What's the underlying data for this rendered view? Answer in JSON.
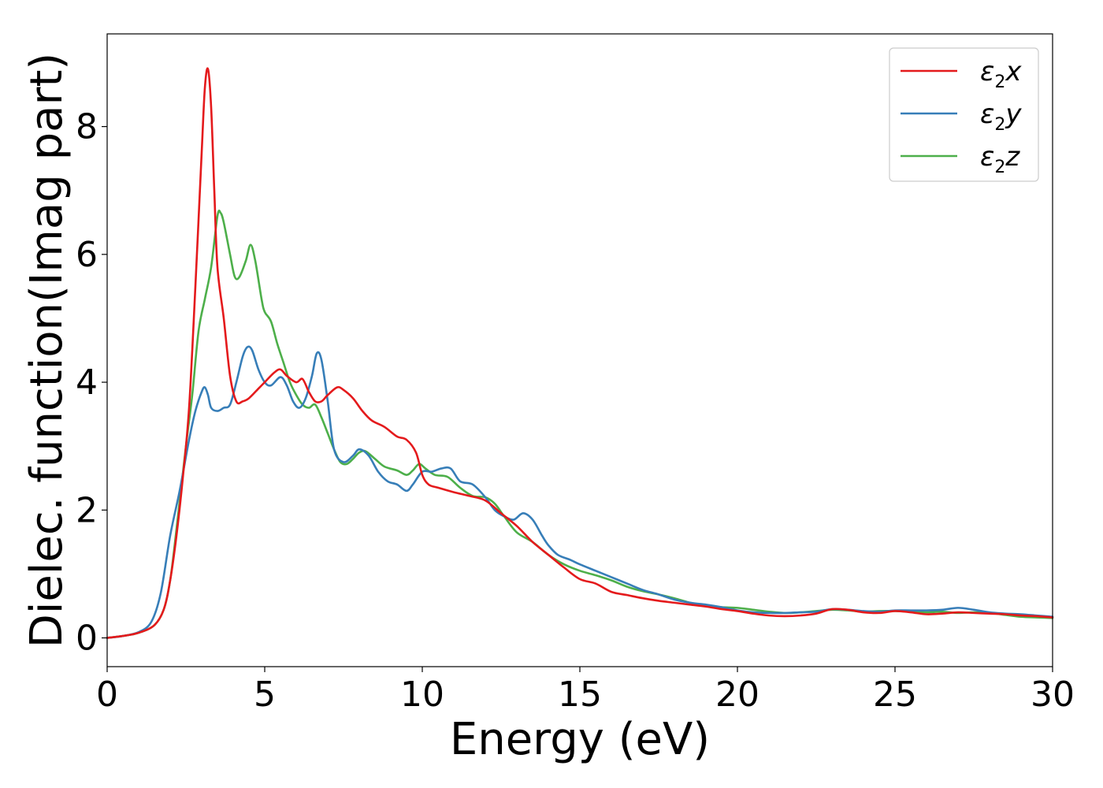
{
  "chart_data": {
    "type": "line",
    "xlabel": "Energy (eV)",
    "ylabel": "Dielec. function(Imag part)",
    "xlim": [
      0,
      30
    ],
    "ylim": [
      -0.45,
      9.45
    ],
    "xticks": [
      0,
      5,
      10,
      15,
      20,
      25,
      30
    ],
    "yticks": [
      0,
      2,
      4,
      6,
      8
    ],
    "grid": false,
    "legend_position": "top-right",
    "series": [
      {
        "name": "ε2x",
        "legend": {
          "base": "ε",
          "sub": "2",
          "suffix": "x"
        },
        "color": "#e41a1c",
        "x": [
          0,
          0.5,
          1.0,
          1.5,
          1.8,
          2.0,
          2.2,
          2.4,
          2.6,
          2.8,
          3.0,
          3.1,
          3.2,
          3.3,
          3.4,
          3.5,
          3.7,
          3.9,
          4.1,
          4.3,
          4.5,
          4.8,
          5.0,
          5.3,
          5.5,
          5.7,
          6.0,
          6.2,
          6.4,
          6.6,
          6.8,
          7.0,
          7.3,
          7.5,
          7.8,
          8.1,
          8.4,
          8.8,
          9.2,
          9.5,
          9.8,
          10.0,
          10.2,
          10.5,
          11.0,
          11.5,
          12.0,
          12.5,
          13.0,
          13.5,
          14.0,
          14.5,
          15.0,
          15.5,
          16.0,
          16.5,
          17.0,
          17.5,
          18.0,
          18.5,
          19.0,
          19.5,
          20.0,
          20.5,
          21.0,
          21.5,
          22.0,
          22.5,
          23.0,
          23.5,
          24.0,
          24.5,
          25.0,
          25.5,
          26.0,
          26.5,
          27.0,
          27.5,
          28.0,
          28.5,
          29.0,
          29.5,
          30.0
        ],
        "y": [
          0,
          0.03,
          0.08,
          0.2,
          0.45,
          0.9,
          1.6,
          2.5,
          3.6,
          5.5,
          7.6,
          8.6,
          8.9,
          8.3,
          7.0,
          5.8,
          5.0,
          4.1,
          3.7,
          3.7,
          3.75,
          3.9,
          4.0,
          4.15,
          4.2,
          4.1,
          4.0,
          4.05,
          3.85,
          3.7,
          3.7,
          3.8,
          3.92,
          3.88,
          3.75,
          3.55,
          3.4,
          3.3,
          3.15,
          3.1,
          2.9,
          2.55,
          2.4,
          2.35,
          2.28,
          2.22,
          2.15,
          1.95,
          1.75,
          1.5,
          1.3,
          1.1,
          0.92,
          0.85,
          0.72,
          0.67,
          0.62,
          0.58,
          0.55,
          0.52,
          0.49,
          0.45,
          0.42,
          0.38,
          0.35,
          0.34,
          0.35,
          0.38,
          0.45,
          0.44,
          0.4,
          0.39,
          0.42,
          0.4,
          0.37,
          0.38,
          0.4,
          0.39,
          0.38,
          0.37,
          0.35,
          0.34,
          0.32
        ]
      },
      {
        "name": "ε2y",
        "legend": {
          "base": "ε",
          "sub": "2",
          "suffix": "y"
        },
        "color": "#377eb8",
        "x": [
          0,
          0.5,
          1.0,
          1.4,
          1.7,
          2.0,
          2.3,
          2.6,
          2.8,
          3.0,
          3.1,
          3.2,
          3.3,
          3.5,
          3.7,
          3.9,
          4.1,
          4.3,
          4.45,
          4.6,
          4.8,
          5.0,
          5.2,
          5.5,
          5.7,
          5.9,
          6.1,
          6.3,
          6.5,
          6.65,
          6.8,
          7.0,
          7.2,
          7.5,
          7.8,
          8.0,
          8.3,
          8.6,
          8.9,
          9.2,
          9.5,
          9.7,
          10.0,
          10.3,
          10.6,
          10.9,
          11.2,
          11.6,
          12.0,
          12.3,
          12.6,
          12.9,
          13.2,
          13.5,
          13.8,
          14.0,
          14.3,
          14.7,
          15.0,
          15.5,
          16.0,
          16.5,
          17.0,
          17.5,
          18.0,
          18.5,
          19.0,
          19.5,
          20.0,
          20.5,
          21.0,
          21.5,
          22.0,
          22.5,
          23.0,
          23.5,
          24.0,
          24.5,
          25.0,
          25.5,
          26.0,
          26.5,
          27.0,
          27.5,
          28.0,
          28.5,
          29.0,
          29.5,
          30.0
        ],
        "y": [
          0,
          0.03,
          0.09,
          0.25,
          0.7,
          1.6,
          2.3,
          3.1,
          3.55,
          3.85,
          3.92,
          3.8,
          3.6,
          3.55,
          3.6,
          3.65,
          4.0,
          4.4,
          4.55,
          4.5,
          4.2,
          4.0,
          3.95,
          4.08,
          3.95,
          3.7,
          3.6,
          3.75,
          4.1,
          4.45,
          4.35,
          3.7,
          2.95,
          2.75,
          2.85,
          2.95,
          2.85,
          2.6,
          2.45,
          2.4,
          2.3,
          2.4,
          2.6,
          2.6,
          2.65,
          2.65,
          2.45,
          2.4,
          2.2,
          2.0,
          1.9,
          1.85,
          1.95,
          1.85,
          1.6,
          1.45,
          1.3,
          1.22,
          1.15,
          1.05,
          0.95,
          0.85,
          0.75,
          0.68,
          0.6,
          0.55,
          0.52,
          0.48,
          0.43,
          0.4,
          0.39,
          0.39,
          0.4,
          0.41,
          0.45,
          0.44,
          0.42,
          0.41,
          0.43,
          0.43,
          0.43,
          0.44,
          0.47,
          0.44,
          0.4,
          0.38,
          0.37,
          0.35,
          0.33
        ]
      },
      {
        "name": "ε2z",
        "legend": {
          "base": "ε",
          "sub": "2",
          "suffix": "z"
        },
        "color": "#4daf4a",
        "x": [
          0,
          0.5,
          1.0,
          1.5,
          1.8,
          2.0,
          2.2,
          2.5,
          2.7,
          2.9,
          3.1,
          3.3,
          3.5,
          3.6,
          3.7,
          3.9,
          4.05,
          4.2,
          4.4,
          4.55,
          4.7,
          4.9,
          5.0,
          5.2,
          5.4,
          5.6,
          5.8,
          6.0,
          6.2,
          6.4,
          6.6,
          6.8,
          7.0,
          7.2,
          7.4,
          7.6,
          7.8,
          8.0,
          8.2,
          8.5,
          8.8,
          9.2,
          9.5,
          9.7,
          9.9,
          10.1,
          10.4,
          10.8,
          11.2,
          11.6,
          12.0,
          12.3,
          12.6,
          13.0,
          13.5,
          14.0,
          14.5,
          15.0,
          15.5,
          16.0,
          16.5,
          17.0,
          17.5,
          18.0,
          18.5,
          19.0,
          19.5,
          20.0,
          20.5,
          21.0,
          21.5,
          22.0,
          22.5,
          23.0,
          23.5,
          24.0,
          24.5,
          25.0,
          25.5,
          26.0,
          26.5,
          27.0,
          27.5,
          28.0,
          28.5,
          29.0,
          29.5,
          30.0
        ],
        "y": [
          0,
          0.03,
          0.08,
          0.2,
          0.45,
          0.9,
          1.7,
          3.0,
          3.8,
          4.8,
          5.3,
          5.8,
          6.6,
          6.65,
          6.5,
          6.0,
          5.65,
          5.65,
          5.9,
          6.15,
          5.9,
          5.3,
          5.1,
          4.95,
          4.6,
          4.3,
          4.0,
          3.8,
          3.65,
          3.6,
          3.65,
          3.45,
          3.2,
          2.95,
          2.75,
          2.72,
          2.8,
          2.9,
          2.92,
          2.8,
          2.68,
          2.62,
          2.55,
          2.62,
          2.72,
          2.65,
          2.55,
          2.52,
          2.35,
          2.22,
          2.2,
          2.1,
          1.9,
          1.65,
          1.5,
          1.3,
          1.15,
          1.05,
          0.98,
          0.9,
          0.8,
          0.73,
          0.68,
          0.62,
          0.55,
          0.5,
          0.48,
          0.47,
          0.44,
          0.41,
          0.39,
          0.4,
          0.42,
          0.44,
          0.43,
          0.41,
          0.42,
          0.42,
          0.41,
          0.4,
          0.41,
          0.39,
          0.4,
          0.39,
          0.36,
          0.33,
          0.32,
          0.31
        ]
      }
    ]
  }
}
